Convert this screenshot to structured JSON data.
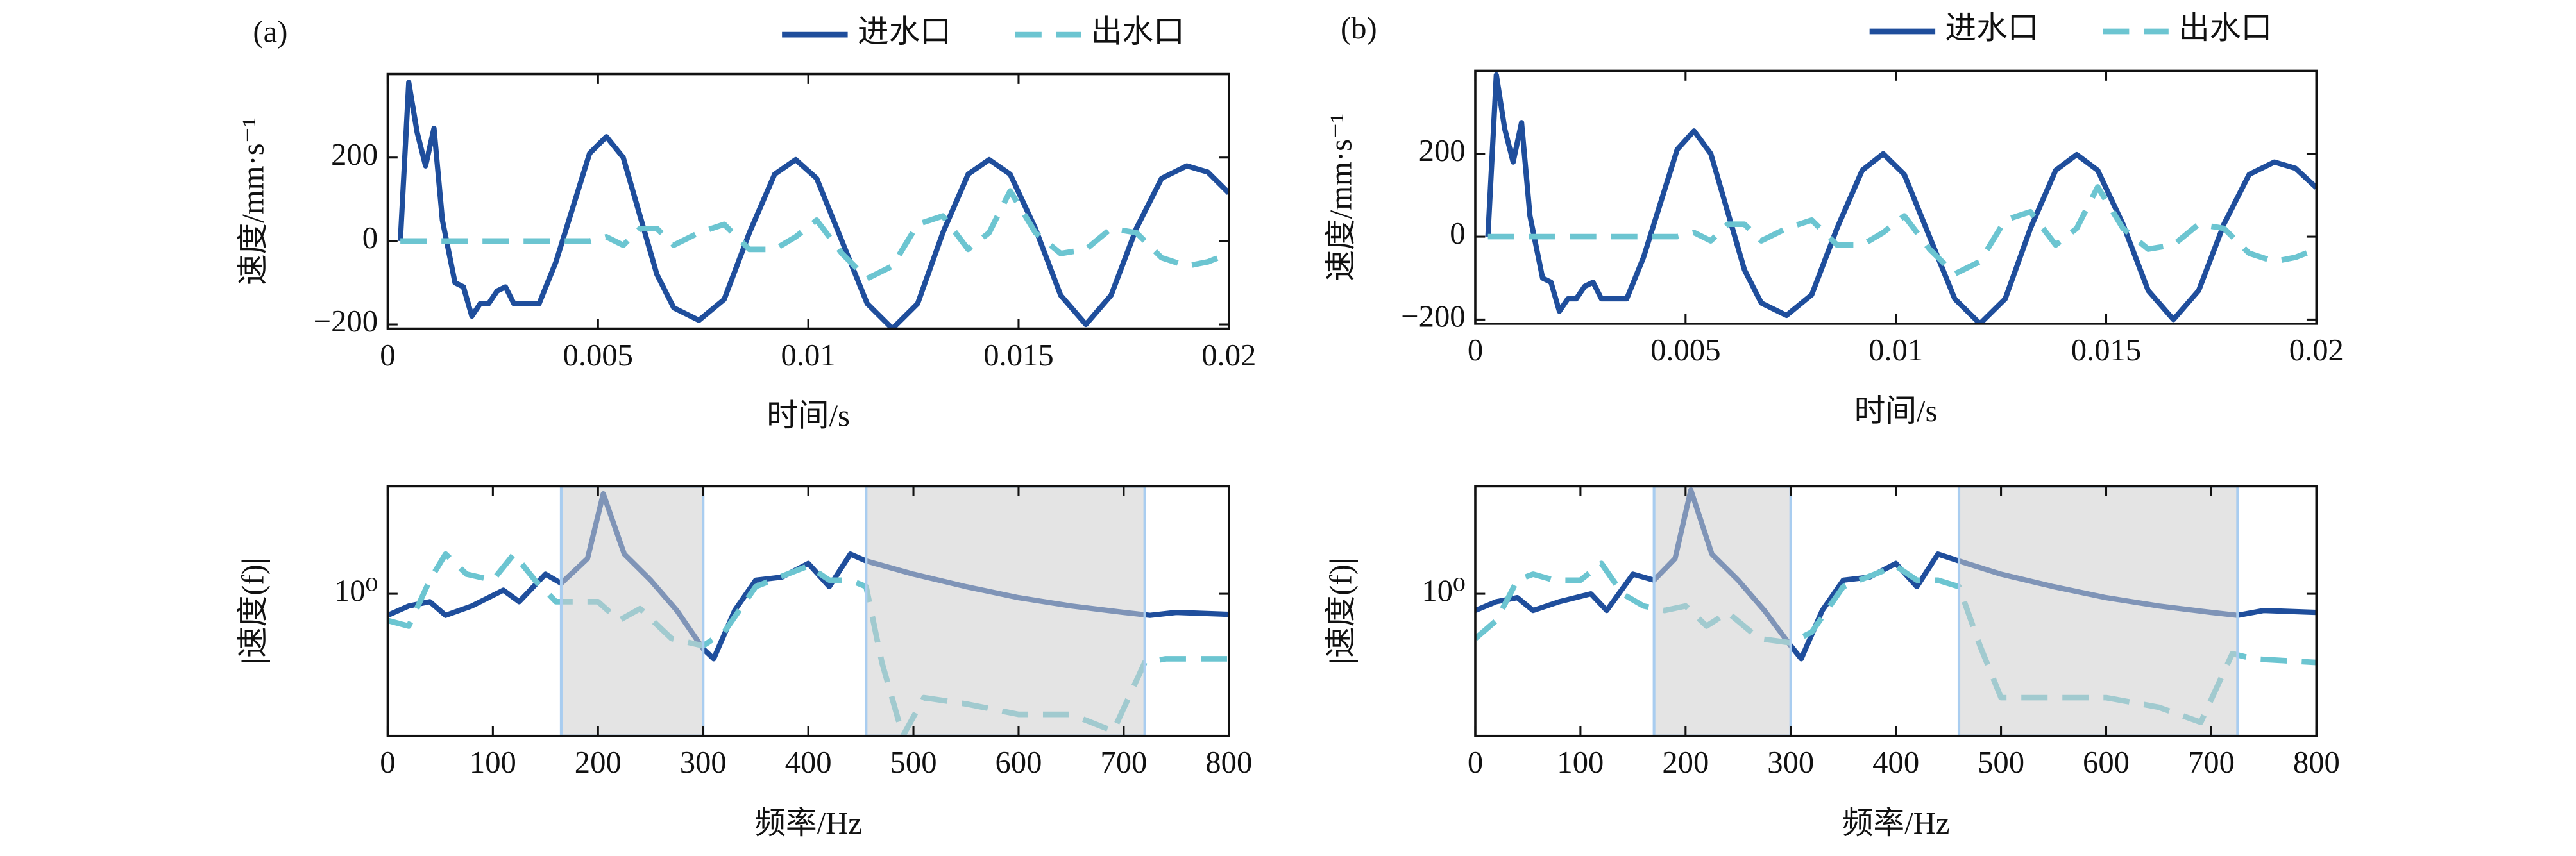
{
  "chart_data": [
    {
      "type": "line",
      "panel": "(a)",
      "xlabel": "时间/s",
      "ylabel": "速度/mm·s⁻¹",
      "legend": "upper right",
      "xlim": [
        0,
        0.02
      ],
      "ylim": [
        -210,
        400
      ],
      "xticks": [
        0,
        0.005,
        0.01,
        0.015,
        0.02
      ],
      "yticks": [
        {
          "value": -200,
          "label": "−200"
        },
        0,
        200
      ],
      "x": [
        0.0003,
        0.0005,
        0.0007,
        0.0009,
        0.0011,
        0.0013,
        0.0016,
        0.0018,
        0.002,
        0.0022,
        0.0024,
        0.0026,
        0.0028,
        0.003,
        0.0033,
        0.0036,
        0.004,
        0.0044,
        0.0048,
        0.0052,
        0.0056,
        0.006,
        0.0064,
        0.0068,
        0.0074,
        0.008,
        0.0086,
        0.0092,
        0.0097,
        0.0102,
        0.0108,
        0.0114,
        0.012,
        0.0126,
        0.0132,
        0.0138,
        0.0143,
        0.0148,
        0.0154,
        0.016,
        0.0166,
        0.0172,
        0.0178,
        0.0184,
        0.019,
        0.0195,
        0.02
      ],
      "series": [
        {
          "name": "进水口",
          "color": "#1f4e9c",
          "dash": false,
          "values": [
            0,
            380,
            260,
            180,
            270,
            50,
            -100,
            -110,
            -180,
            -150,
            -150,
            -120,
            -110,
            -150,
            -150,
            -150,
            -50,
            80,
            210,
            250,
            200,
            60,
            -80,
            -160,
            -190,
            -140,
            20,
            160,
            195,
            150,
            0,
            -150,
            -210,
            -150,
            20,
            160,
            195,
            160,
            30,
            -130,
            -200,
            -130,
            30,
            150,
            180,
            165,
            115
          ]
        },
        {
          "name": "出水口",
          "color": "#6cc5d1",
          "dash": true,
          "values": [
            0,
            0,
            0,
            0,
            0,
            0,
            0,
            0,
            0,
            0,
            0,
            0,
            0,
            0,
            0,
            0,
            0,
            0,
            0,
            10,
            -10,
            30,
            30,
            -10,
            20,
            40,
            -20,
            -20,
            10,
            50,
            -30,
            -90,
            -60,
            40,
            60,
            -20,
            20,
            120,
            20,
            -30,
            -20,
            30,
            20,
            -40,
            -60,
            -50,
            -30
          ]
        }
      ]
    },
    {
      "type": "line",
      "xlabel": "频率/Hz",
      "ylabel": "|速度(f)|",
      "log_y": true,
      "xlim": [
        0,
        800
      ],
      "ylim": [
        0.15,
        4.2
      ],
      "xticks": [
        0,
        100,
        200,
        300,
        400,
        500,
        600,
        700,
        800
      ],
      "yticks": [
        {
          "value": 1,
          "label": "10⁰"
        }
      ],
      "shaded_regions": [
        [
          165,
          300
        ],
        [
          455,
          720
        ]
      ],
      "series": [
        {
          "color": "#1f4e9c",
          "dash": false,
          "x": [
            0,
            20,
            40,
            55,
            80,
            110,
            125,
            150,
            165,
            190,
            205,
            225,
            250,
            275,
            300,
            310,
            330,
            350,
            375,
            400,
            420,
            440,
            455,
            500,
            550,
            600,
            650,
            700,
            725,
            750,
            800
          ],
          "values": [
            0.75,
            0.85,
            0.9,
            0.75,
            0.85,
            1.05,
            0.9,
            1.3,
            1.15,
            1.6,
            3.8,
            1.7,
            1.2,
            0.8,
            0.48,
            0.42,
            0.8,
            1.2,
            1.25,
            1.5,
            1.1,
            1.7,
            1.55,
            1.3,
            1.1,
            0.95,
            0.85,
            0.78,
            0.75,
            0.78,
            0.76
          ]
        },
        {
          "color": "#6cc5d1",
          "dash": true,
          "x": [
            0,
            20,
            40,
            55,
            75,
            100,
            120,
            140,
            160,
            180,
            200,
            220,
            240,
            270,
            300,
            320,
            350,
            380,
            400,
            420,
            440,
            455,
            470,
            490,
            510,
            550,
            600,
            650,
            690,
            720,
            740,
            800
          ],
          "values": [
            0.7,
            0.65,
            1.2,
            1.7,
            1.3,
            1.2,
            1.7,
            1.2,
            0.9,
            0.9,
            0.9,
            0.7,
            0.82,
            0.55,
            0.5,
            0.6,
            1.1,
            1.3,
            1.45,
            1.2,
            1.2,
            1.1,
            0.4,
            0.15,
            0.25,
            0.23,
            0.2,
            0.2,
            0.16,
            0.4,
            0.42,
            0.42
          ]
        }
      ]
    },
    {
      "type": "line",
      "panel": "(b)",
      "xlabel": "时间/s",
      "ylabel": "速度/mm·s⁻¹",
      "legend": "upper right",
      "xlim": [
        0,
        0.02
      ],
      "ylim": [
        -210,
        400
      ],
      "xticks": [
        0,
        0.005,
        0.01,
        0.015,
        0.02
      ],
      "yticks": [
        {
          "value": -200,
          "label": "−200"
        },
        0,
        200
      ],
      "x": [
        0.0003,
        0.0005,
        0.0007,
        0.0009,
        0.0011,
        0.0013,
        0.0016,
        0.0018,
        0.002,
        0.0022,
        0.0024,
        0.0026,
        0.0028,
        0.003,
        0.0033,
        0.0036,
        0.004,
        0.0044,
        0.0048,
        0.0052,
        0.0056,
        0.006,
        0.0064,
        0.0068,
        0.0074,
        0.008,
        0.0086,
        0.0092,
        0.0097,
        0.0102,
        0.0108,
        0.0114,
        0.012,
        0.0126,
        0.0132,
        0.0138,
        0.0143,
        0.0148,
        0.0154,
        0.016,
        0.0166,
        0.0172,
        0.0178,
        0.0184,
        0.019,
        0.0195,
        0.02
      ],
      "series": [
        {
          "name": "进水口",
          "color": "#1f4e9c",
          "dash": false,
          "values": [
            0,
            390,
            260,
            180,
            275,
            50,
            -100,
            -110,
            -180,
            -150,
            -150,
            -120,
            -110,
            -150,
            -150,
            -150,
            -50,
            80,
            210,
            255,
            200,
            60,
            -80,
            -160,
            -190,
            -140,
            20,
            160,
            200,
            150,
            0,
            -150,
            -210,
            -150,
            20,
            160,
            198,
            160,
            30,
            -130,
            -200,
            -130,
            30,
            150,
            180,
            165,
            118
          ]
        },
        {
          "name": "出水口",
          "color": "#6cc5d1",
          "dash": true,
          "values": [
            0,
            0,
            0,
            0,
            0,
            0,
            0,
            0,
            0,
            0,
            0,
            0,
            0,
            0,
            0,
            0,
            0,
            0,
            0,
            10,
            -10,
            30,
            30,
            -10,
            20,
            40,
            -20,
            -20,
            10,
            50,
            -30,
            -90,
            -60,
            40,
            60,
            -20,
            20,
            120,
            20,
            -30,
            -20,
            30,
            20,
            -40,
            -60,
            -50,
            -30
          ]
        }
      ]
    },
    {
      "type": "line",
      "xlabel": "频率/Hz",
      "ylabel": "|速度(f)|",
      "log_y": true,
      "xlim": [
        0,
        800
      ],
      "ylim": [
        0.15,
        4.2
      ],
      "xticks": [
        0,
        100,
        200,
        300,
        400,
        500,
        600,
        700,
        800
      ],
      "yticks": [
        {
          "value": 1,
          "label": "10⁰"
        }
      ],
      "shaded_regions": [
        [
          170,
          300
        ],
        [
          460,
          725
        ]
      ],
      "series": [
        {
          "color": "#1f4e9c",
          "dash": false,
          "x": [
            0,
            20,
            40,
            55,
            80,
            110,
            125,
            150,
            170,
            190,
            205,
            225,
            250,
            275,
            300,
            310,
            330,
            350,
            375,
            400,
            420,
            440,
            460,
            500,
            550,
            600,
            650,
            700,
            725,
            750,
            800
          ],
          "values": [
            0.8,
            0.9,
            0.95,
            0.8,
            0.9,
            1.0,
            0.8,
            1.3,
            1.2,
            1.6,
            4.0,
            1.7,
            1.2,
            0.8,
            0.5,
            0.42,
            0.8,
            1.2,
            1.25,
            1.5,
            1.1,
            1.7,
            1.55,
            1.3,
            1.1,
            0.95,
            0.85,
            0.78,
            0.75,
            0.8,
            0.78
          ]
        },
        {
          "color": "#6cc5d1",
          "dash": true,
          "x": [
            0,
            20,
            40,
            55,
            75,
            100,
            120,
            140,
            160,
            180,
            200,
            220,
            240,
            270,
            300,
            320,
            350,
            380,
            400,
            420,
            440,
            460,
            480,
            500,
            550,
            600,
            650,
            690,
            720,
            740,
            800
          ],
          "values": [
            0.55,
            0.7,
            1.2,
            1.3,
            1.2,
            1.2,
            1.5,
            1.0,
            0.85,
            0.8,
            0.85,
            0.65,
            0.78,
            0.55,
            0.52,
            0.6,
            1.1,
            1.3,
            1.45,
            1.2,
            1.2,
            1.1,
            0.5,
            0.25,
            0.25,
            0.25,
            0.22,
            0.18,
            0.45,
            0.42,
            0.4
          ]
        }
      ]
    }
  ]
}
